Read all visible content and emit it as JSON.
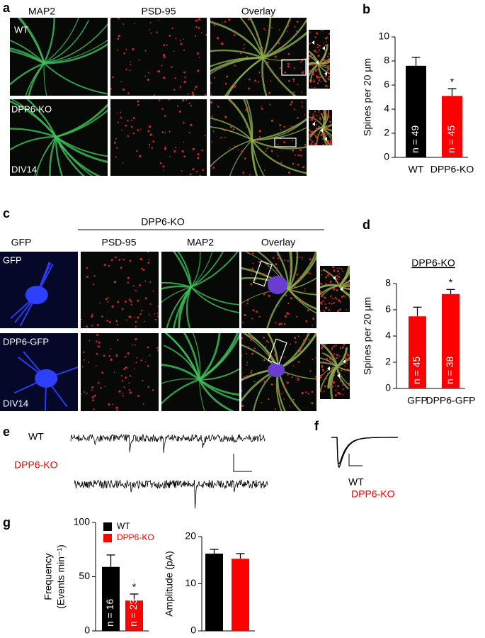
{
  "panel_labels": [
    "a",
    "b",
    "c",
    "d",
    "e",
    "f",
    "g"
  ],
  "panel_a": {
    "column_titles": [
      "MAP2",
      "PSD-95",
      "Overlay"
    ],
    "row_labels": [
      "WT",
      "DPP6-KO"
    ],
    "age_label": "DIV14"
  },
  "panel_c": {
    "group_title": "DPP6-KO",
    "column_titles": [
      "GFP",
      "PSD-95",
      "MAP2",
      "Overlay"
    ],
    "row_labels": [
      "GFP",
      "DPP6-GFP"
    ],
    "age_label": "DIV14"
  },
  "panel_e": {
    "trace_labels": [
      "WT",
      "DPP6-KO"
    ]
  },
  "panel_f": {
    "trace_labels": [
      "WT",
      "DPP6-KO"
    ]
  },
  "chart_data": [
    {
      "type": "bar",
      "ylabel": "Spines per 20 µm",
      "categories": [
        "WT",
        "DPP6-KO"
      ],
      "values": [
        7.6,
        5.1
      ],
      "errors": [
        0.7,
        0.6
      ],
      "colors": [
        "#000000",
        "#ff0000"
      ],
      "n_labels": [
        "n = 49",
        "n = 45"
      ],
      "significance": [
        null,
        "*"
      ],
      "ylim": [
        0,
        10
      ],
      "yticks": [
        0,
        2,
        4,
        6,
        8,
        10
      ]
    },
    {
      "type": "bar",
      "title": "DPP6-KO",
      "ylabel": "Spines per 20 µm",
      "categories": [
        "GFP",
        "DPP6-GFP"
      ],
      "values": [
        5.5,
        7.2
      ],
      "errors": [
        0.7,
        0.35
      ],
      "colors": [
        "#ff0000",
        "#ff0000"
      ],
      "n_labels": [
        "n = 45",
        "n = 38"
      ],
      "significance": [
        null,
        "*"
      ],
      "ylim": [
        0,
        8
      ],
      "yticks": [
        0,
        2,
        4,
        6,
        8
      ]
    },
    {
      "type": "bar",
      "ylabel": [
        "Frequency",
        "(Events min⁻¹)"
      ],
      "values": [
        59,
        28
      ],
      "errors": [
        11,
        6
      ],
      "colors": [
        "#000000",
        "#ff0000"
      ],
      "n_labels": [
        "n = 16",
        "n = 23"
      ],
      "significance": [
        null,
        "*"
      ],
      "legend": [
        {
          "name": "WT",
          "color": "#000000"
        },
        {
          "name": "DPP6-KO",
          "color": "#ff0000"
        }
      ],
      "ylim": [
        0,
        100
      ],
      "yticks": [
        0,
        50,
        100
      ]
    },
    {
      "type": "bar",
      "ylabel": "Amplitude (pA)",
      "values": [
        16.4,
        15.3
      ],
      "errors": [
        0.9,
        1.1
      ],
      "colors": [
        "#000000",
        "#ff0000"
      ],
      "ylim": [
        0,
        20
      ],
      "yticks": [
        0,
        10,
        20
      ]
    }
  ]
}
